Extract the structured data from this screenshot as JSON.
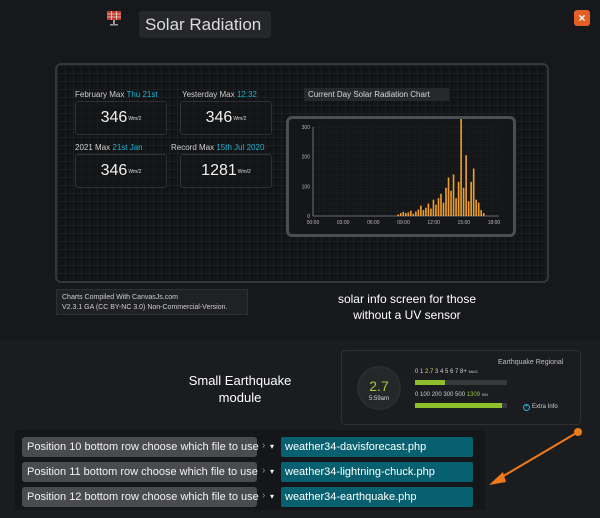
{
  "header": {
    "title": "Solar Radiation",
    "close_label": "×"
  },
  "stats": {
    "feb_max": {
      "label": "February Max",
      "highlight": "Thu 21st",
      "value": "346",
      "unit": "Wm/2"
    },
    "yest_max": {
      "label": "Yesterday Max",
      "highlight": "12:32",
      "value": "346",
      "unit": "Wm/2"
    },
    "year_max": {
      "label": "2021 Max",
      "highlight": "21st Jan",
      "value": "346",
      "unit": "Wm/2"
    },
    "record_max": {
      "label": "Record Max",
      "highlight": "15th Jul 2020",
      "value": "1281",
      "unit": "Wm/2"
    }
  },
  "chart_data": {
    "type": "bar",
    "title": "Current Day Solar Radiation Chart",
    "xlabel": "",
    "ylabel": "",
    "x_ticks": [
      "00:00",
      "03:00",
      "06:00",
      "09:00",
      "12:00",
      "15:00",
      "18:00"
    ],
    "y_ticks": [
      "0",
      "100",
      "200",
      "300"
    ],
    "ylim": [
      0,
      300
    ],
    "xlim": [
      0,
      18.5
    ],
    "x": [
      8.5,
      8.75,
      9.0,
      9.25,
      9.5,
      9.75,
      10.0,
      10.25,
      10.5,
      10.75,
      11.0,
      11.25,
      11.5,
      11.75,
      12.0,
      12.25,
      12.5,
      12.75,
      13.0,
      13.25,
      13.5,
      13.75,
      14.0,
      14.25,
      14.5,
      14.75,
      15.0,
      15.25,
      15.5,
      15.75,
      16.0,
      16.25,
      16.5,
      16.75,
      17.0
    ],
    "values": [
      5,
      10,
      14,
      10,
      12,
      18,
      8,
      15,
      22,
      35,
      20,
      28,
      42,
      25,
      55,
      38,
      60,
      75,
      45,
      95,
      130,
      85,
      140,
      60,
      115,
      345,
      95,
      205,
      50,
      115,
      160,
      55,
      45,
      20,
      10
    ],
    "bar_color": "#f0a02a",
    "grid": true
  },
  "credits": {
    "line1": "Charts Compiled With CanvasJs.com",
    "line2": "V2.3.1 GA (CC BY-NC 3.0) Non-Commercial-Version."
  },
  "notes": {
    "solar": "solar info screen for those without a UV sensor",
    "earthquake": "Small Earthquake module"
  },
  "earthquake": {
    "title": "Earthquake Regional",
    "magnitude": "2.7",
    "time": "5:59am",
    "mag_scale_pre": "0 1 ",
    "mag_scale_hl": "2.7",
    "mag_scale_post": " 3 4 5 6 7 8+",
    "mag_unit": "MAG",
    "km_scale_pre": "0 100 200 300 500 ",
    "km_scale_hl": "1309",
    "km_unit": "KM",
    "mag_fraction": 0.33,
    "km_fraction": 0.95,
    "extra_label": "Extra Info",
    "colors": {
      "magnitude": "#a7c93a",
      "bar": "#8fbf2c"
    }
  },
  "settings": {
    "rows": [
      {
        "label": "Position 10 bottom row choose which file to use",
        "value": "weather34-davisforecast.php"
      },
      {
        "label": "Position 11 bottom row choose which file to use",
        "value": "weather34-lightning-chuck.php"
      },
      {
        "label": "Position 12 bottom row choose which file to use",
        "value": "weather34-earthquake.php"
      }
    ]
  },
  "colors": {
    "accent": "#22b3d6",
    "close": "#e35f25",
    "arrow": "#f07a1a",
    "input_bg": "#07606f"
  }
}
